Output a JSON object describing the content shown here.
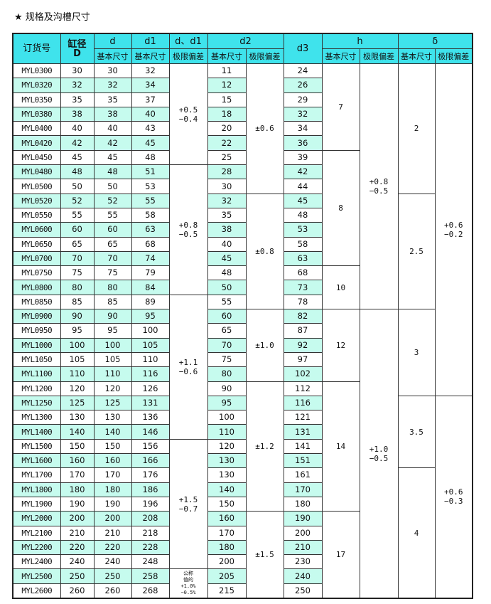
{
  "title": "★ 规格及沟槽尺寸",
  "header": {
    "code": "订货号",
    "bore": "缸径",
    "bore_sym": "D",
    "d": "d",
    "d1": "d1",
    "dd1": "d、d1",
    "d2": "d2",
    "d3": "d3",
    "h": "h",
    "delta": "δ",
    "basic": "基本尺寸",
    "tol": "极限偏差"
  },
  "colors": {
    "header": "#3fe3ec",
    "highlight": "#c6fbee"
  },
  "rows": [
    [
      "MYL0300",
      "30",
      "30",
      "32",
      "11",
      "24",
      0
    ],
    [
      "MYL0320",
      "32",
      "32",
      "34",
      "12",
      "26",
      1
    ],
    [
      "MYL0350",
      "35",
      "35",
      "37",
      "15",
      "29",
      0
    ],
    [
      "MYL0380",
      "38",
      "38",
      "40",
      "18",
      "32",
      1
    ],
    [
      "MYL0400",
      "40",
      "40",
      "43",
      "20",
      "34",
      0
    ],
    [
      "MYL0420",
      "42",
      "42",
      "45",
      "22",
      "36",
      1
    ],
    [
      "MYL0450",
      "45",
      "45",
      "48",
      "25",
      "39",
      0
    ],
    [
      "MYL0480",
      "48",
      "48",
      "51",
      "28",
      "42",
      1
    ],
    [
      "MYL0500",
      "50",
      "50",
      "53",
      "30",
      "44",
      0
    ],
    [
      "MYL0520",
      "52",
      "52",
      "55",
      "32",
      "45",
      1
    ],
    [
      "MYL0550",
      "55",
      "55",
      "58",
      "35",
      "48",
      0
    ],
    [
      "MYL0600",
      "60",
      "60",
      "63",
      "38",
      "53",
      1
    ],
    [
      "MYL0650",
      "65",
      "65",
      "68",
      "40",
      "58",
      0
    ],
    [
      "MYL0700",
      "70",
      "70",
      "74",
      "45",
      "63",
      1
    ],
    [
      "MYL0750",
      "75",
      "75",
      "79",
      "48",
      "68",
      0
    ],
    [
      "MYL0800",
      "80",
      "80",
      "84",
      "50",
      "73",
      1
    ],
    [
      "MYL0850",
      "85",
      "85",
      "89",
      "55",
      "78",
      0
    ],
    [
      "MYL0900",
      "90",
      "90",
      "95",
      "60",
      "82",
      1
    ],
    [
      "MYL0950",
      "95",
      "95",
      "100",
      "65",
      "87",
      0
    ],
    [
      "MYL1000",
      "100",
      "100",
      "105",
      "70",
      "92",
      1
    ],
    [
      "MYL1050",
      "105",
      "105",
      "110",
      "75",
      "97",
      0
    ],
    [
      "MYL1100",
      "110",
      "110",
      "116",
      "80",
      "102",
      1
    ],
    [
      "MYL1200",
      "120",
      "120",
      "126",
      "90",
      "112",
      0
    ],
    [
      "MYL1250",
      "125",
      "125",
      "131",
      "95",
      "116",
      1
    ],
    [
      "MYL1300",
      "130",
      "130",
      "136",
      "100",
      "121",
      0
    ],
    [
      "MYL1400",
      "140",
      "140",
      "146",
      "110",
      "131",
      1
    ],
    [
      "MYL1500",
      "150",
      "150",
      "156",
      "120",
      "141",
      0
    ],
    [
      "MYL1600",
      "160",
      "160",
      "166",
      "130",
      "151",
      1
    ],
    [
      "MYL1700",
      "170",
      "170",
      "176",
      "130",
      "161",
      0
    ],
    [
      "MYL1800",
      "180",
      "180",
      "186",
      "140",
      "170",
      1
    ],
    [
      "MYL1900",
      "190",
      "190",
      "196",
      "150",
      "180",
      0
    ],
    [
      "MYL2000",
      "200",
      "200",
      "208",
      "160",
      "190",
      1
    ],
    [
      "MYL2100",
      "210",
      "210",
      "218",
      "170",
      "200",
      0
    ],
    [
      "MYL2200",
      "220",
      "220",
      "228",
      "180",
      "210",
      1
    ],
    [
      "MYL2400",
      "240",
      "240",
      "248",
      "200",
      "230",
      0
    ],
    [
      "MYL2500",
      "250",
      "250",
      "258",
      "205",
      "240",
      1
    ],
    [
      "MYL2600",
      "260",
      "260",
      "268",
      "215",
      "250",
      0
    ]
  ],
  "groups": {
    "dd1_tol": [
      {
        "text": "+0.5\n−0.4",
        "span": 7
      },
      {
        "text": "+0.8\n−0.5",
        "span": 9
      },
      {
        "text": "+1.1\n−0.6",
        "span": 10
      },
      {
        "text": "+1.5\n−0.7",
        "span": 9
      },
      {
        "text": "公称\n值的\n+1.0%\n−0.5%",
        "span": 2
      }
    ],
    "d2_tol": [
      {
        "text": "±0.6",
        "span": 9
      },
      {
        "text": "±0.8",
        "span": 8
      },
      {
        "text": "±1.0",
        "span": 5
      },
      {
        "text": "±1.2",
        "span": 9
      },
      {
        "text": "±1.5",
        "span": 6
      }
    ],
    "h": [
      {
        "text": "7",
        "span": 6
      },
      {
        "text": "8",
        "span": 8
      },
      {
        "text": "10",
        "span": 3
      },
      {
        "text": "12",
        "span": 5
      },
      {
        "text": "14",
        "span": 9
      },
      {
        "text": "17",
        "span": 6
      }
    ],
    "h_tol": [
      {
        "text": "+0.8\n−0.5",
        "span": 17
      },
      {
        "text": "+1.0\n−0.5",
        "span": 20
      }
    ],
    "delta": [
      {
        "text": "2",
        "span": 9
      },
      {
        "text": "2.5",
        "span": 8
      },
      {
        "text": "3",
        "span": 6
      },
      {
        "text": "3.5",
        "span": 5
      },
      {
        "text": "4",
        "span": 9
      }
    ],
    "delta_tol": [
      {
        "text": "+0.6\n−0.2",
        "span": 23
      },
      {
        "text": "+0.6\n−0.3",
        "span": 14
      }
    ]
  }
}
